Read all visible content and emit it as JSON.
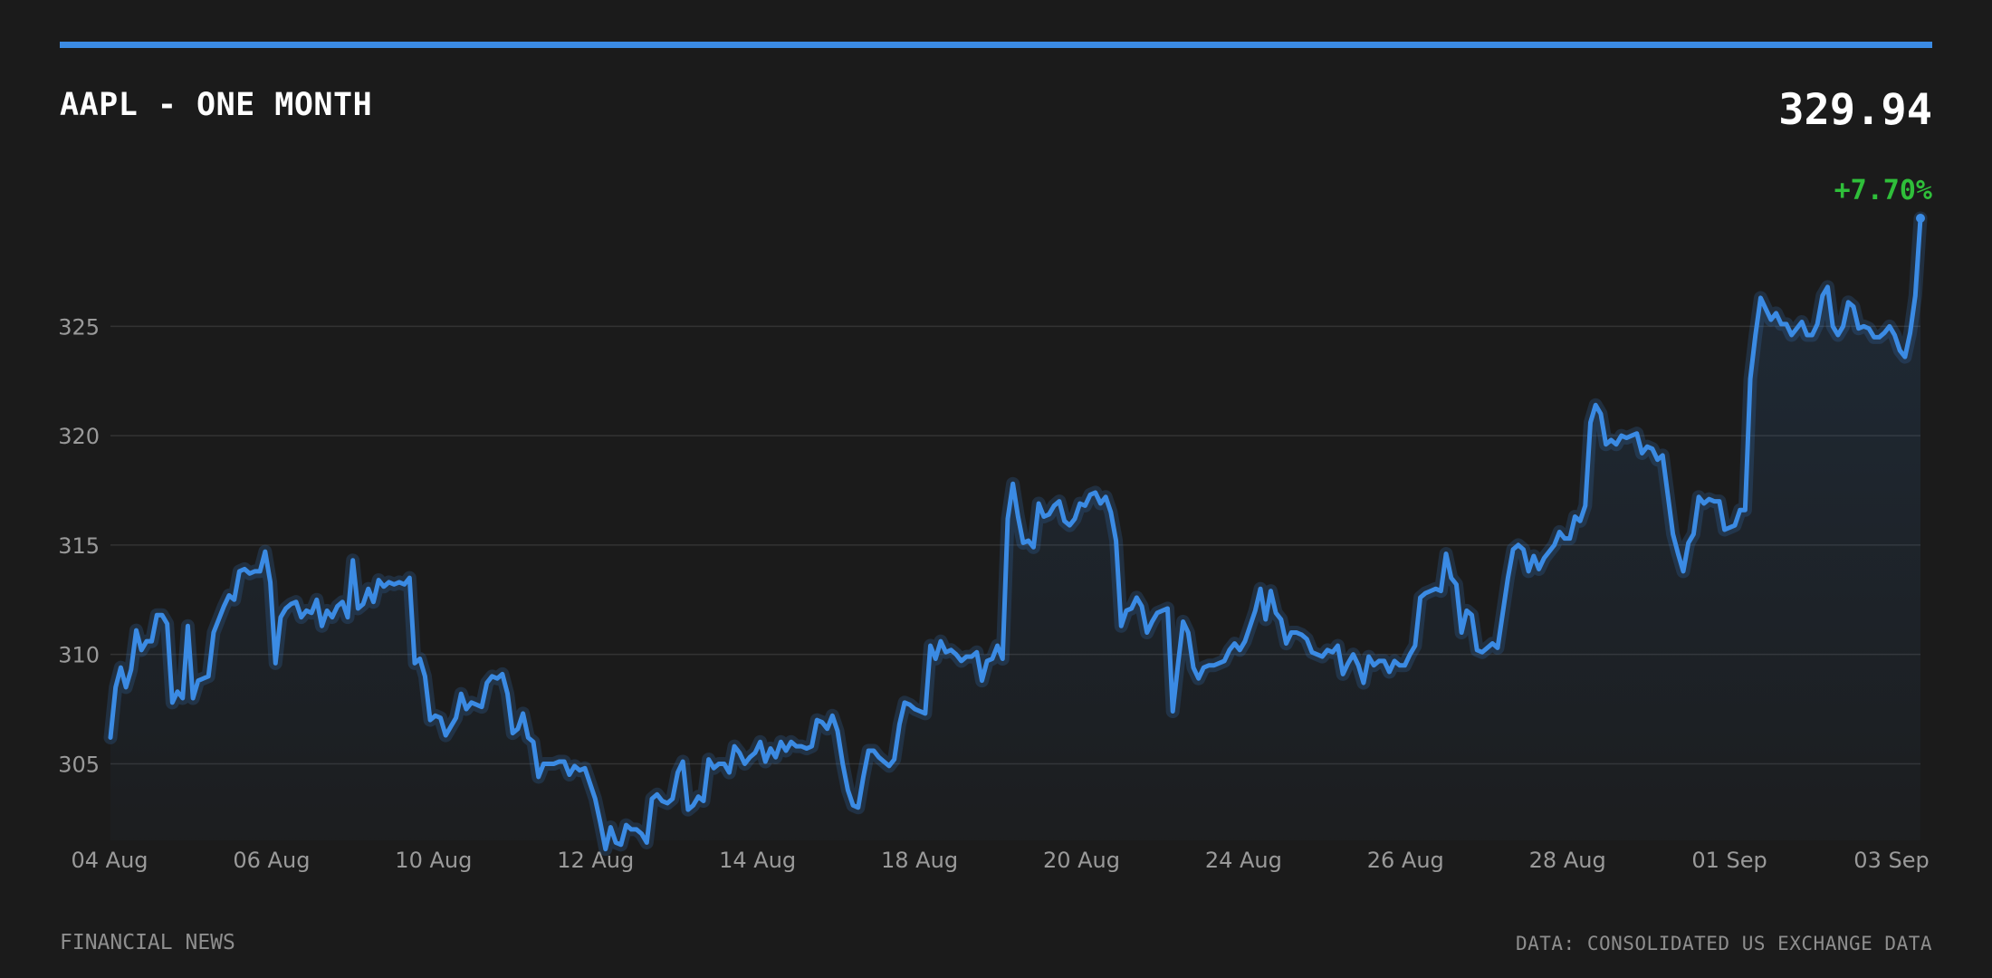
{
  "header": {
    "title": "AAPL - ONE MONTH",
    "price": "329.94",
    "change": "+7.70%"
  },
  "footer": {
    "left": "FINANCIAL NEWS",
    "right": "DATA: CONSOLIDATED US EXCHANGE DATA"
  },
  "colors": {
    "accent": "#3b8be4",
    "positive": "#2fbf3a",
    "background": "#1b1b1b"
  },
  "chart_data": {
    "type": "area",
    "title": "AAPL - ONE MONTH",
    "xlabel": "",
    "ylabel": "",
    "ylim": [
      301.5,
      329.94
    ],
    "yticks": [
      305,
      310,
      315,
      320,
      325
    ],
    "grid": true,
    "xtick_labels": [
      "04 Aug",
      "06 Aug",
      "10 Aug",
      "12 Aug",
      "14 Aug",
      "18 Aug",
      "20 Aug",
      "24 Aug",
      "26 Aug",
      "28 Aug",
      "01 Sep",
      "03 Sep"
    ],
    "series": [
      {
        "values": [
          306.2,
          308.5,
          309.4,
          308.5,
          309.3,
          311.1,
          310.2,
          310.6,
          310.6,
          311.8,
          311.8,
          311.4,
          307.8,
          308.3,
          308.0,
          311.3,
          308.0,
          308.8,
          308.9,
          309.0,
          311.0,
          311.6,
          312.2,
          312.7,
          312.5,
          313.8,
          313.9,
          313.7,
          313.8,
          313.8,
          314.7,
          313.3,
          309.6,
          311.7,
          312.1,
          312.3,
          312.4,
          311.7,
          312.0,
          311.9,
          312.5,
          311.3,
          312.0,
          311.7,
          312.2,
          312.4,
          311.7,
          314.3,
          312.1,
          312.3,
          313.0,
          312.4,
          313.4,
          313.1,
          313.3,
          313.2,
          313.3,
          313.2,
          313.5,
          309.6,
          309.8,
          309.0,
          307.0,
          307.2,
          307.1,
          306.3,
          306.7,
          307.1,
          308.2,
          307.5,
          307.8,
          307.7,
          307.6,
          308.7,
          309.0,
          308.9,
          309.1,
          308.2,
          306.4,
          306.6,
          307.3,
          306.2,
          306.0,
          304.4,
          305.0,
          305.0,
          305.0,
          305.1,
          305.1,
          304.5,
          304.9,
          304.7,
          304.8,
          304.1,
          303.4,
          302.3,
          301.1,
          302.1,
          301.4,
          301.3,
          302.2,
          302.0,
          302.0,
          301.8,
          301.4,
          303.4,
          303.6,
          303.3,
          303.2,
          303.4,
          304.6,
          305.1,
          302.9,
          303.1,
          303.5,
          303.3,
          305.2,
          304.8,
          305.0,
          305.0,
          304.6,
          305.8,
          305.5,
          305.0,
          305.3,
          305.5,
          306.0,
          305.1,
          305.7,
          305.3,
          306.0,
          305.6,
          306.0,
          305.8,
          305.8,
          305.7,
          305.8,
          307.0,
          306.9,
          306.6,
          307.2,
          306.5,
          305.0,
          303.8,
          303.1,
          303.0,
          304.4,
          305.6,
          305.6,
          305.3,
          305.1,
          304.9,
          305.2,
          306.8,
          307.8,
          307.7,
          307.5,
          307.4,
          307.3,
          310.4,
          309.8,
          310.6,
          310.1,
          310.2,
          310.0,
          309.7,
          309.9,
          309.9,
          310.1,
          308.8,
          309.7,
          309.8,
          310.4,
          309.8,
          316.2,
          317.8,
          316.3,
          315.1,
          315.2,
          314.9,
          316.9,
          316.3,
          316.4,
          316.8,
          317.0,
          316.1,
          315.9,
          316.2,
          316.9,
          316.8,
          317.3,
          317.4,
          316.9,
          317.2,
          316.5,
          315.2,
          311.3,
          312.0,
          312.1,
          312.6,
          312.2,
          311.0,
          311.5,
          311.9,
          312.0,
          312.1,
          307.4,
          309.5,
          311.5,
          311.0,
          309.4,
          308.9,
          309.4,
          309.5,
          309.5,
          309.6,
          309.7,
          310.2,
          310.5,
          310.2,
          310.6,
          311.3,
          312.0,
          313.0,
          311.6,
          312.9,
          311.9,
          311.6,
          310.5,
          311.0,
          311.0,
          310.9,
          310.7,
          310.1,
          310.0,
          309.9,
          310.2,
          310.1,
          310.4,
          309.1,
          309.6,
          310.0,
          309.5,
          308.7,
          309.9,
          309.5,
          309.7,
          309.7,
          309.2,
          309.7,
          309.5,
          309.5,
          310.0,
          310.4,
          312.6,
          312.8,
          312.9,
          313.0,
          312.9,
          314.6,
          313.5,
          313.2,
          311.0,
          312.0,
          311.8,
          310.2,
          310.1,
          310.3,
          310.5,
          310.3,
          311.9,
          313.5,
          314.8,
          315.0,
          314.8,
          313.8,
          314.5,
          313.9,
          314.4,
          314.7,
          315.0,
          315.6,
          315.3,
          315.3,
          316.3,
          316.1,
          316.8,
          320.6,
          321.4,
          321.0,
          319.6,
          319.8,
          319.6,
          320.0,
          319.9,
          320.0,
          320.1,
          319.2,
          319.5,
          319.4,
          318.9,
          319.1,
          317.3,
          315.5,
          314.6,
          313.8,
          315.1,
          315.5,
          317.2,
          316.9,
          317.1,
          317.0,
          317.0,
          315.7,
          315.8,
          315.9,
          316.6,
          316.6,
          322.6,
          324.6,
          326.3,
          325.8,
          325.3,
          325.6,
          325.1,
          325.1,
          324.6,
          324.9,
          325.2,
          324.6,
          324.6,
          325.1,
          326.4,
          326.8,
          325.0,
          324.6,
          325.0,
          326.1,
          325.9,
          324.9,
          325.0,
          324.9,
          324.5,
          324.5,
          324.7,
          325.0,
          324.6,
          323.9,
          323.6,
          324.7,
          326.4,
          329.94
        ]
      }
    ]
  }
}
